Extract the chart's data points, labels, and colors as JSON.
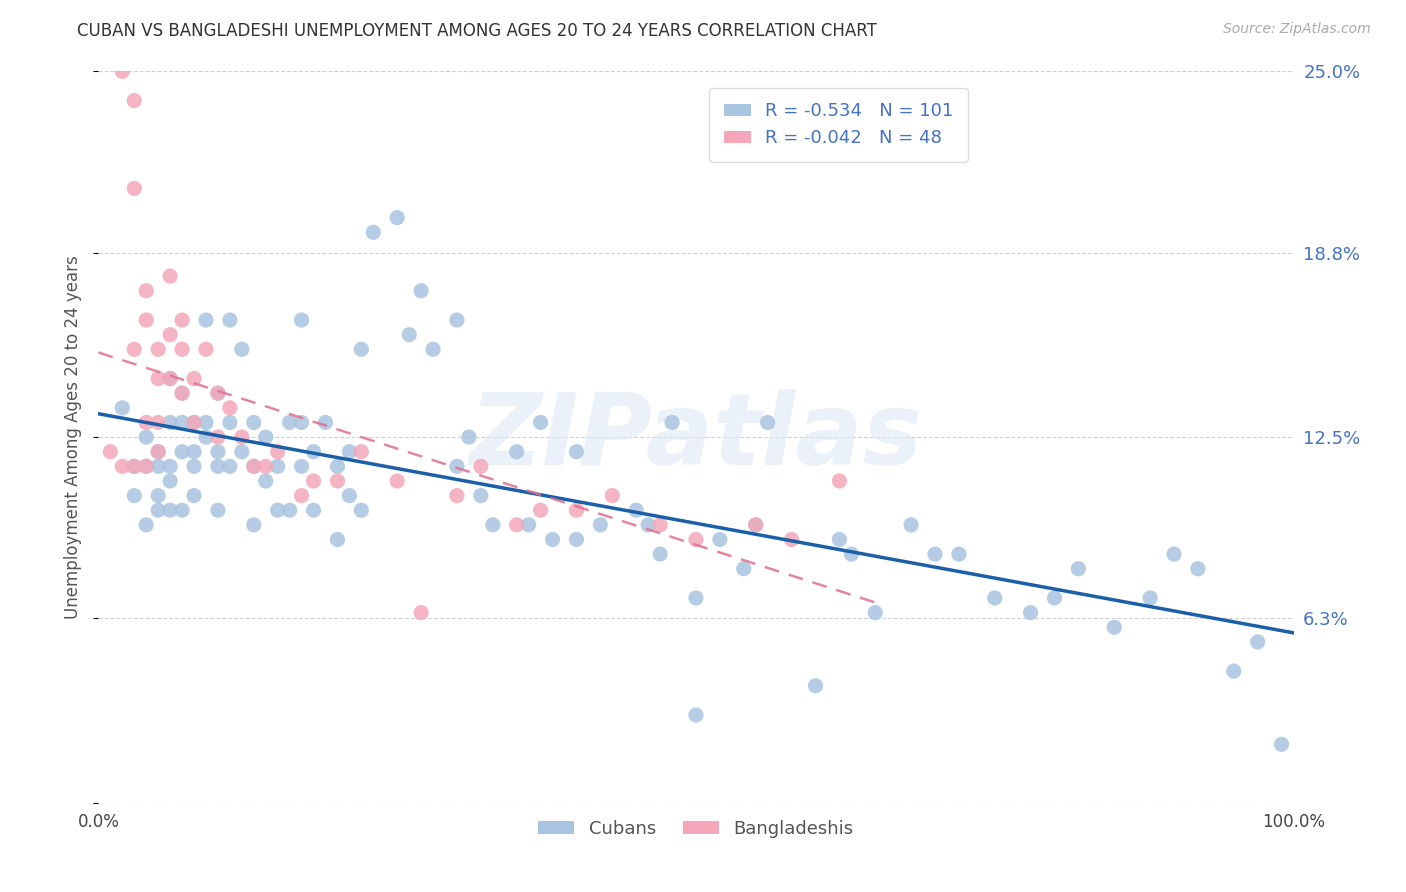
{
  "title": "CUBAN VS BANGLADESHI UNEMPLOYMENT AMONG AGES 20 TO 24 YEARS CORRELATION CHART",
  "source": "Source: ZipAtlas.com",
  "ylabel": "Unemployment Among Ages 20 to 24 years",
  "xlim": [
    0,
    1
  ],
  "ylim": [
    0,
    0.25
  ],
  "ytick_vals": [
    0.0,
    0.063,
    0.125,
    0.188,
    0.25
  ],
  "ytick_labels": [
    "",
    "6.3%",
    "12.5%",
    "18.8%",
    "25.0%"
  ],
  "xtick_vals": [
    0.0,
    0.25,
    0.5,
    0.75,
    1.0
  ],
  "xtick_labels": [
    "0.0%",
    "",
    "",
    "",
    "100.0%"
  ],
  "cuban_R": -0.534,
  "cuban_N": 101,
  "bangladeshi_R": -0.042,
  "bangladeshi_N": 48,
  "cuban_color": "#a8c4e0",
  "bangladeshi_color": "#f4a7b9",
  "cuban_line_color": "#1a5fa8",
  "bangladeshi_line_color": "#e07090",
  "legend_text_color": "#4472c4",
  "watermark": "ZIPatlas",
  "background_color": "#ffffff",
  "cuban_x": [
    0.02,
    0.03,
    0.03,
    0.04,
    0.04,
    0.04,
    0.05,
    0.05,
    0.05,
    0.05,
    0.06,
    0.06,
    0.06,
    0.06,
    0.06,
    0.07,
    0.07,
    0.07,
    0.07,
    0.08,
    0.08,
    0.08,
    0.08,
    0.09,
    0.09,
    0.09,
    0.1,
    0.1,
    0.1,
    0.1,
    0.11,
    0.11,
    0.11,
    0.12,
    0.12,
    0.13,
    0.13,
    0.13,
    0.14,
    0.14,
    0.15,
    0.15,
    0.16,
    0.16,
    0.17,
    0.17,
    0.17,
    0.18,
    0.18,
    0.19,
    0.2,
    0.2,
    0.21,
    0.21,
    0.22,
    0.22,
    0.23,
    0.25,
    0.26,
    0.27,
    0.28,
    0.3,
    0.3,
    0.31,
    0.32,
    0.33,
    0.35,
    0.36,
    0.37,
    0.38,
    0.4,
    0.4,
    0.42,
    0.45,
    0.46,
    0.47,
    0.48,
    0.5,
    0.5,
    0.52,
    0.54,
    0.55,
    0.56,
    0.6,
    0.62,
    0.63,
    0.65,
    0.68,
    0.7,
    0.72,
    0.75,
    0.78,
    0.8,
    0.82,
    0.85,
    0.88,
    0.9,
    0.92,
    0.95,
    0.97,
    0.99
  ],
  "cuban_y": [
    0.135,
    0.115,
    0.105,
    0.115,
    0.125,
    0.095,
    0.1,
    0.115,
    0.12,
    0.105,
    0.1,
    0.11,
    0.115,
    0.13,
    0.145,
    0.1,
    0.12,
    0.13,
    0.14,
    0.105,
    0.115,
    0.12,
    0.13,
    0.125,
    0.13,
    0.165,
    0.1,
    0.115,
    0.12,
    0.14,
    0.115,
    0.13,
    0.165,
    0.12,
    0.155,
    0.095,
    0.115,
    0.13,
    0.11,
    0.125,
    0.1,
    0.115,
    0.1,
    0.13,
    0.115,
    0.13,
    0.165,
    0.1,
    0.12,
    0.13,
    0.09,
    0.115,
    0.105,
    0.12,
    0.1,
    0.155,
    0.195,
    0.2,
    0.16,
    0.175,
    0.155,
    0.115,
    0.165,
    0.125,
    0.105,
    0.095,
    0.12,
    0.095,
    0.13,
    0.09,
    0.12,
    0.09,
    0.095,
    0.1,
    0.095,
    0.085,
    0.13,
    0.03,
    0.07,
    0.09,
    0.08,
    0.095,
    0.13,
    0.04,
    0.09,
    0.085,
    0.065,
    0.095,
    0.085,
    0.085,
    0.07,
    0.065,
    0.07,
    0.08,
    0.06,
    0.07,
    0.085,
    0.08,
    0.045,
    0.055,
    0.02
  ],
  "bangladeshi_x": [
    0.01,
    0.02,
    0.02,
    0.03,
    0.03,
    0.03,
    0.03,
    0.04,
    0.04,
    0.04,
    0.04,
    0.05,
    0.05,
    0.05,
    0.05,
    0.06,
    0.06,
    0.06,
    0.07,
    0.07,
    0.07,
    0.08,
    0.08,
    0.09,
    0.1,
    0.1,
    0.11,
    0.12,
    0.13,
    0.14,
    0.15,
    0.17,
    0.18,
    0.2,
    0.22,
    0.25,
    0.27,
    0.3,
    0.32,
    0.35,
    0.37,
    0.4,
    0.43,
    0.47,
    0.5,
    0.55,
    0.58,
    0.62
  ],
  "bangladeshi_y": [
    0.12,
    0.25,
    0.115,
    0.24,
    0.21,
    0.155,
    0.115,
    0.175,
    0.165,
    0.13,
    0.115,
    0.155,
    0.145,
    0.13,
    0.12,
    0.18,
    0.16,
    0.145,
    0.165,
    0.155,
    0.14,
    0.145,
    0.13,
    0.155,
    0.14,
    0.125,
    0.135,
    0.125,
    0.115,
    0.115,
    0.12,
    0.105,
    0.11,
    0.11,
    0.12,
    0.11,
    0.065,
    0.105,
    0.115,
    0.095,
    0.1,
    0.1,
    0.105,
    0.095,
    0.09,
    0.095,
    0.09,
    0.11
  ]
}
